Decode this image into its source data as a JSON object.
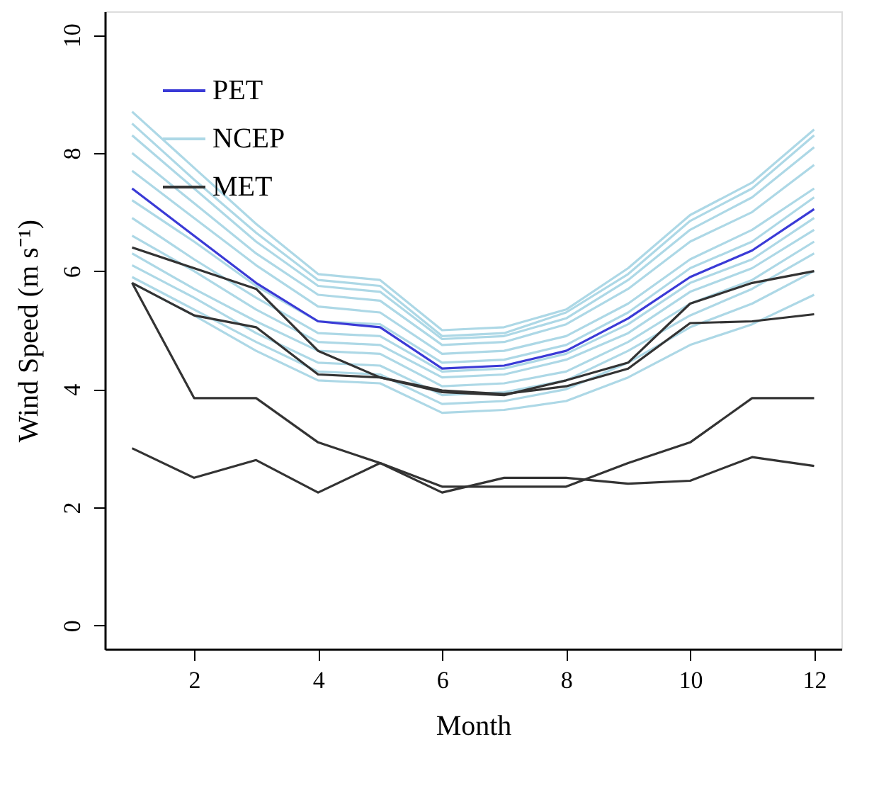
{
  "chart_data": {
    "type": "line",
    "xlabel": "Month",
    "ylabel": "Wind Speed (m s⁻¹)",
    "x": [
      1,
      2,
      3,
      4,
      5,
      6,
      7,
      8,
      9,
      10,
      11,
      12
    ],
    "xlim": [
      0.56,
      12.44
    ],
    "xticks": [
      2,
      4,
      6,
      8,
      10,
      12
    ],
    "ylim": [
      -0.4,
      10.4
    ],
    "yticks": [
      0,
      2,
      4,
      6,
      8,
      10
    ],
    "grid": false,
    "legend": "top left",
    "marker": "none",
    "line_style": "solid",
    "series": [
      {
        "name": "PET",
        "color": "#3a3ad6",
        "values": [
          7.4,
          6.6,
          5.8,
          5.15,
          5.05,
          4.35,
          4.4,
          4.65,
          5.2,
          5.9,
          6.35,
          7.05
        ]
      },
      {
        "name": "NCEP",
        "color": "#add8e6",
        "values": [
          8.7,
          7.75,
          6.8,
          5.95,
          5.85,
          5.0,
          5.05,
          5.35,
          6.05,
          6.95,
          7.5,
          8.4
        ]
      },
      {
        "color": "#add8e6",
        "values": [
          8.5,
          7.55,
          6.65,
          5.85,
          5.75,
          4.9,
          4.95,
          5.3,
          5.95,
          6.85,
          7.4,
          8.3
        ]
      },
      {
        "color": "#add8e6",
        "values": [
          8.3,
          7.4,
          6.5,
          5.75,
          5.65,
          4.85,
          4.9,
          5.2,
          5.85,
          6.7,
          7.25,
          8.1
        ]
      },
      {
        "color": "#add8e6",
        "values": [
          8.0,
          7.15,
          6.3,
          5.6,
          5.5,
          4.75,
          4.8,
          5.1,
          5.7,
          6.5,
          7.0,
          7.8
        ]
      },
      {
        "color": "#add8e6",
        "values": [
          7.7,
          6.9,
          6.1,
          5.4,
          5.3,
          4.6,
          4.65,
          4.9,
          5.45,
          6.2,
          6.7,
          7.4
        ]
      },
      {
        "color": "#add8e6",
        "values": [
          7.2,
          6.5,
          5.75,
          5.15,
          5.1,
          4.45,
          4.5,
          4.75,
          5.3,
          6.05,
          6.5,
          7.25
        ]
      },
      {
        "color": "#add8e6",
        "values": [
          6.9,
          6.2,
          5.55,
          4.95,
          4.9,
          4.3,
          4.35,
          4.6,
          5.1,
          5.8,
          6.2,
          6.9
        ]
      },
      {
        "color": "#add8e6",
        "values": [
          6.6,
          6.0,
          5.35,
          4.8,
          4.75,
          4.2,
          4.25,
          4.5,
          4.95,
          5.65,
          6.05,
          6.7
        ]
      },
      {
        "color": "#add8e6",
        "values": [
          6.3,
          5.7,
          5.15,
          4.65,
          4.6,
          4.05,
          4.1,
          4.3,
          4.8,
          5.45,
          5.85,
          6.5
        ]
      },
      {
        "color": "#add8e6",
        "values": [
          6.1,
          5.55,
          4.95,
          4.45,
          4.4,
          3.9,
          3.95,
          4.15,
          4.65,
          5.25,
          5.7,
          6.3
        ]
      },
      {
        "color": "#add8e6",
        "values": [
          5.9,
          5.35,
          4.8,
          4.3,
          4.25,
          3.75,
          3.8,
          4.0,
          4.45,
          5.05,
          5.45,
          6.0
        ]
      },
      {
        "color": "#add8e6",
        "values": [
          5.8,
          5.25,
          4.65,
          4.15,
          4.1,
          3.6,
          3.65,
          3.8,
          4.2,
          4.75,
          5.1,
          5.6
        ]
      },
      {
        "name": "MET",
        "color": "#333333",
        "values": [
          6.4,
          6.05,
          5.7,
          4.65,
          4.2,
          3.95,
          3.9,
          4.15,
          4.45,
          5.45,
          5.8,
          6.0
        ]
      },
      {
        "color": "#333333",
        "values": [
          5.8,
          5.25,
          5.05,
          4.25,
          4.2,
          3.98,
          3.92,
          4.05,
          4.35,
          5.12,
          5.15,
          5.27
        ]
      },
      {
        "color": "#333333",
        "values": [
          5.8,
          3.85,
          3.85,
          3.1,
          2.75,
          2.35,
          2.35,
          2.35,
          2.75,
          3.1,
          3.85,
          3.85
        ]
      },
      {
        "color": "#333333",
        "values": [
          3.0,
          2.5,
          2.8,
          2.25,
          2.75,
          2.25,
          2.5,
          2.5,
          2.4,
          2.45,
          2.85,
          2.7
        ]
      }
    ]
  }
}
